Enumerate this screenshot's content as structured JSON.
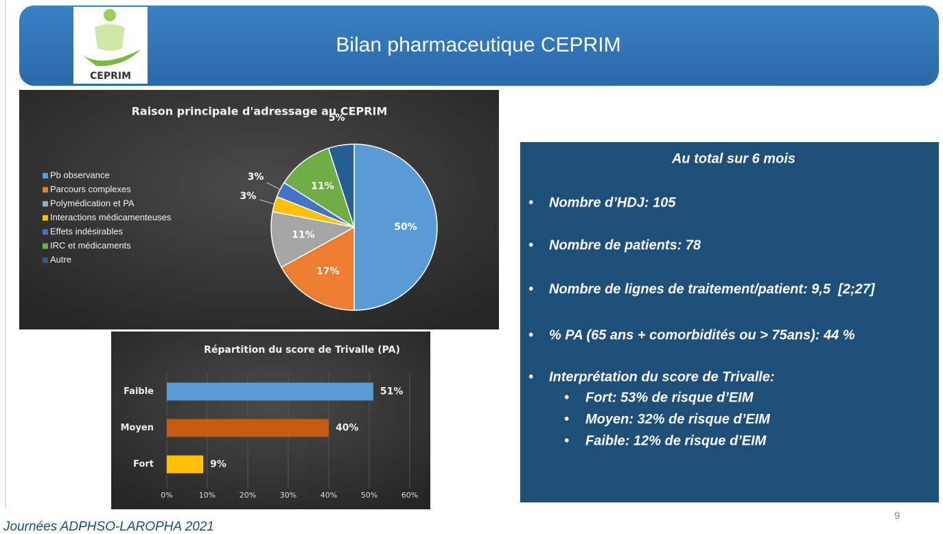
{
  "header": {
    "title": "Bilan pharmaceutique CEPRIM",
    "logo_text": "CEPRIM"
  },
  "chart_data": [
    {
      "type": "pie",
      "title": "Raison principale d'adressage au CEPRIM",
      "categories": [
        "Pb observance",
        "Parcours complexes",
        "Polymédication et PA",
        "Interactions médicamenteuses",
        "Effets indésirables",
        "IRC et médicaments",
        "Autre"
      ],
      "values": [
        50,
        17,
        11,
        3,
        3,
        11,
        5
      ],
      "value_labels": [
        "50%",
        "17%",
        "11%",
        "3%",
        "3%",
        "11%",
        "5%"
      ],
      "colors": [
        "#5b9bd5",
        "#ed7d31",
        "#a5a5a5",
        "#ffc000",
        "#4472c4",
        "#70ad47",
        "#255e91"
      ],
      "legend": "left"
    },
    {
      "type": "hbar",
      "title": "Répartition du score de Trivalle (PA)",
      "categories": [
        "Faible",
        "Moyen",
        "Fort"
      ],
      "values": [
        51,
        40,
        9
      ],
      "value_labels": [
        "51%",
        "40%",
        "9%"
      ],
      "colors": [
        "#5b9bd5",
        "#c55a11",
        "#ffc000"
      ],
      "xlim": [
        0,
        60
      ],
      "xticks": [
        {
          "value": 0,
          "label": "0%"
        },
        {
          "value": 10,
          "label": "10%"
        },
        {
          "value": 20,
          "label": "20%"
        },
        {
          "value": 30,
          "label": "30%"
        },
        {
          "value": 40,
          "label": "40%"
        },
        {
          "value": 50,
          "label": "50%"
        },
        {
          "value": 60,
          "label": "60%"
        }
      ],
      "grid": true
    }
  ],
  "summary": {
    "title": "Au total sur 6 mois",
    "items": [
      "Nombre d’HDJ: 105",
      "Nombre de patients: 78",
      "Nombre de lignes de traitement/patient: 9,5  [2;27]",
      "% PA (65 ans + comorbidités ou > 75ans): 44 %",
      "Interprétation du score de Trivalle:"
    ],
    "subitems": [
      "Fort: 53% de risque d’EIM",
      "Moyen: 32% de risque d’EIM",
      "Faible: 12% de risque d’EIM"
    ]
  },
  "footer": {
    "text": "Journées ADPHSO-LAROPHA 2021",
    "page": "9"
  }
}
